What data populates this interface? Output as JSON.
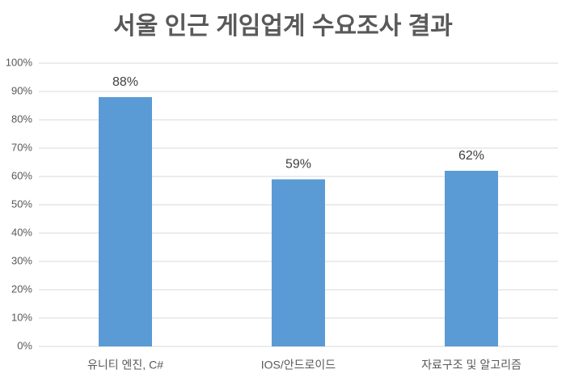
{
  "chart_data": {
    "type": "bar",
    "title": "서울 인근 게임업계 수요조사 결과",
    "categories": [
      "유니티 엔진, C#",
      "IOS/안드로이드",
      "자료구조 및 알고리즘"
    ],
    "values": [
      88,
      59,
      62
    ],
    "value_labels": [
      "88%",
      "59%",
      "62%"
    ],
    "color": "#5b9bd5",
    "ylim": [
      0,
      100
    ],
    "yticks": [
      {
        "value": 0,
        "label": "0%"
      },
      {
        "value": 10,
        "label": "10%"
      },
      {
        "value": 20,
        "label": "20%"
      },
      {
        "value": 30,
        "label": "30%"
      },
      {
        "value": 40,
        "label": "40%"
      },
      {
        "value": 50,
        "label": "50%"
      },
      {
        "value": 60,
        "label": "60%"
      },
      {
        "value": 70,
        "label": "70%"
      },
      {
        "value": 80,
        "label": "80%"
      },
      {
        "value": 90,
        "label": "90%"
      },
      {
        "value": 100,
        "label": "100%"
      }
    ],
    "grid": true
  }
}
